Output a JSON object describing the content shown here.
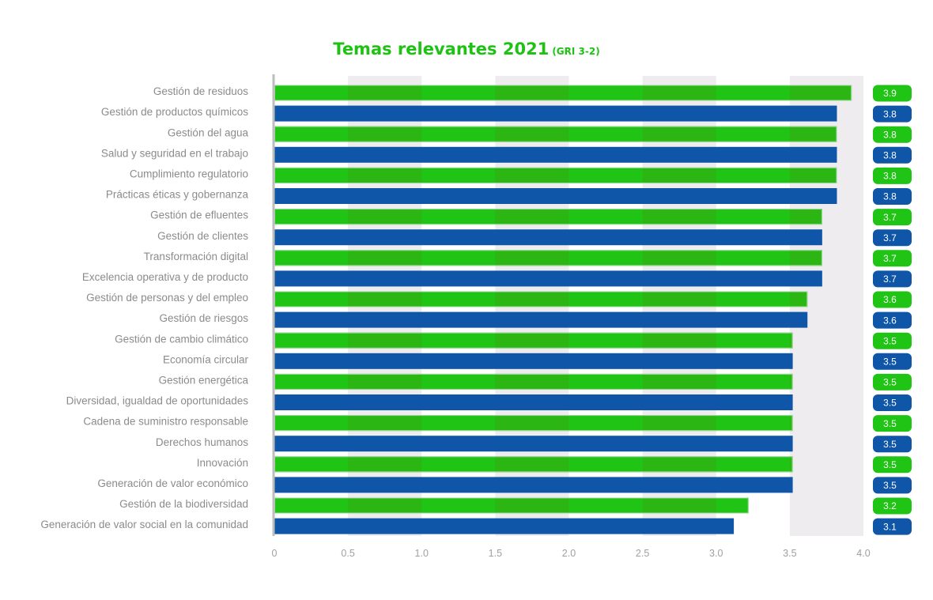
{
  "chart_data": {
    "type": "bar",
    "orientation": "horizontal",
    "title": "Temas relevantes 2021",
    "subtitle": "(GRI 3-2)",
    "categories": [
      "Gestión de residuos",
      "Gestión de productos químicos",
      "Gestión del agua",
      "Salud y seguridad en el trabajo",
      "Cumplimiento regulatorio",
      "Prácticas éticas y gobernanza",
      "Gestión de efluentes",
      "Gestión de clientes",
      "Transformación digital",
      "Excelencia operativa y de producto",
      "Gestión de personas y del empleo",
      "Gestión de riesgos",
      "Gestión de cambio climático",
      "Economía circular",
      "Gestión energética",
      "Diversidad, igualdad de oportunidades",
      "Cadena de suministro responsable",
      "Derechos humanos",
      "Innovación",
      "Generación de valor económico",
      "Gestión de la biodiversidad",
      "Generación de valor social en la comunidad"
    ],
    "values": [
      3.92,
      3.82,
      3.82,
      3.82,
      3.82,
      3.82,
      3.72,
      3.72,
      3.72,
      3.72,
      3.62,
      3.62,
      3.52,
      3.52,
      3.52,
      3.52,
      3.52,
      3.52,
      3.52,
      3.52,
      3.22,
      3.12
    ],
    "value_labels": [
      "3.9",
      "3.8",
      "3.8",
      "3.8",
      "3.8",
      "3.8",
      "3.7",
      "3.7",
      "3.7",
      "3.7",
      "3.6",
      "3.6",
      "3.5",
      "3.5",
      "3.5",
      "3.5",
      "3.5",
      "3.5",
      "3.5",
      "3.5",
      "3.2",
      "3.1"
    ],
    "xlim": [
      0,
      4.0
    ],
    "x_ticks": [
      "0",
      "0.5",
      "1.0",
      "1.5",
      "2.0",
      "2.5",
      "3.0",
      "3.5",
      "4.0"
    ],
    "grid": "alternating vertical bands",
    "colors": {
      "green": "#20c414",
      "blue": "#0f56a8",
      "band": "#eeecee",
      "axis": "#bdbdbd"
    },
    "bar_color_pattern": [
      "green",
      "blue"
    ]
  }
}
